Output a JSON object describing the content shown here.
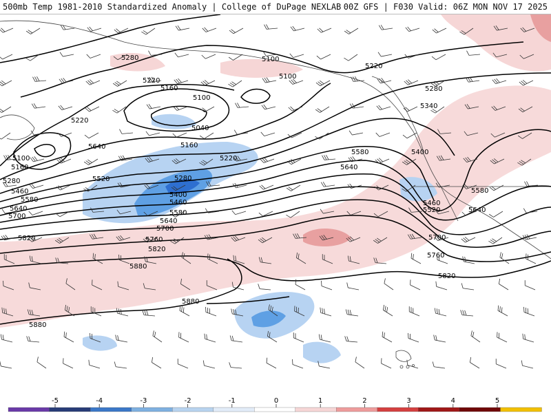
{
  "header": {
    "title": "500mb Temp 1981-2010 Standardized Anomaly | College of DuPage NEXLAB",
    "run_info": "00Z GFS | F030 Valid: 06Z MON NOV 17 2025"
  },
  "colors": {
    "cold3": "#2e6fd0",
    "cold2": "#5fa0e4",
    "cold1": "#b7d3f2",
    "warm1": "#f4cccc",
    "warm2": "#e8a0a0",
    "contour": "#000000",
    "coast": "#333333"
  },
  "contour_labels": [
    "5280",
    "5100",
    "5220",
    "5160",
    "5100",
    "5040",
    "5220",
    "5160",
    "5220",
    "5280",
    "5400",
    "5460",
    "5580",
    "5640",
    "5700",
    "5760",
    "5820",
    "5880",
    "5880",
    "5880",
    "5100",
    "5160",
    "5280",
    "5460",
    "5580",
    "5640",
    "5700",
    "5820",
    "5520",
    "5640",
    "5100",
    "5220",
    "5280",
    "5340",
    "5400",
    "5580",
    "5640",
    "5580",
    "5460",
    "5520",
    "5640",
    "5700",
    "5760",
    "5820"
  ],
  "legend": {
    "ticks": [
      "-5",
      "-4",
      "-3",
      "-2",
      "-1",
      "0",
      "1",
      "2",
      "3",
      "4",
      "5"
    ],
    "colors": [
      "#6a3aa8",
      "#283c78",
      "#3b78c8",
      "#7fb0e0",
      "#b8d3ef",
      "#e2ecf8",
      "#ffffff",
      "#f6d6d6",
      "#ee9c9c",
      "#d44040",
      "#a01818",
      "#700808",
      "#f2c000"
    ]
  }
}
